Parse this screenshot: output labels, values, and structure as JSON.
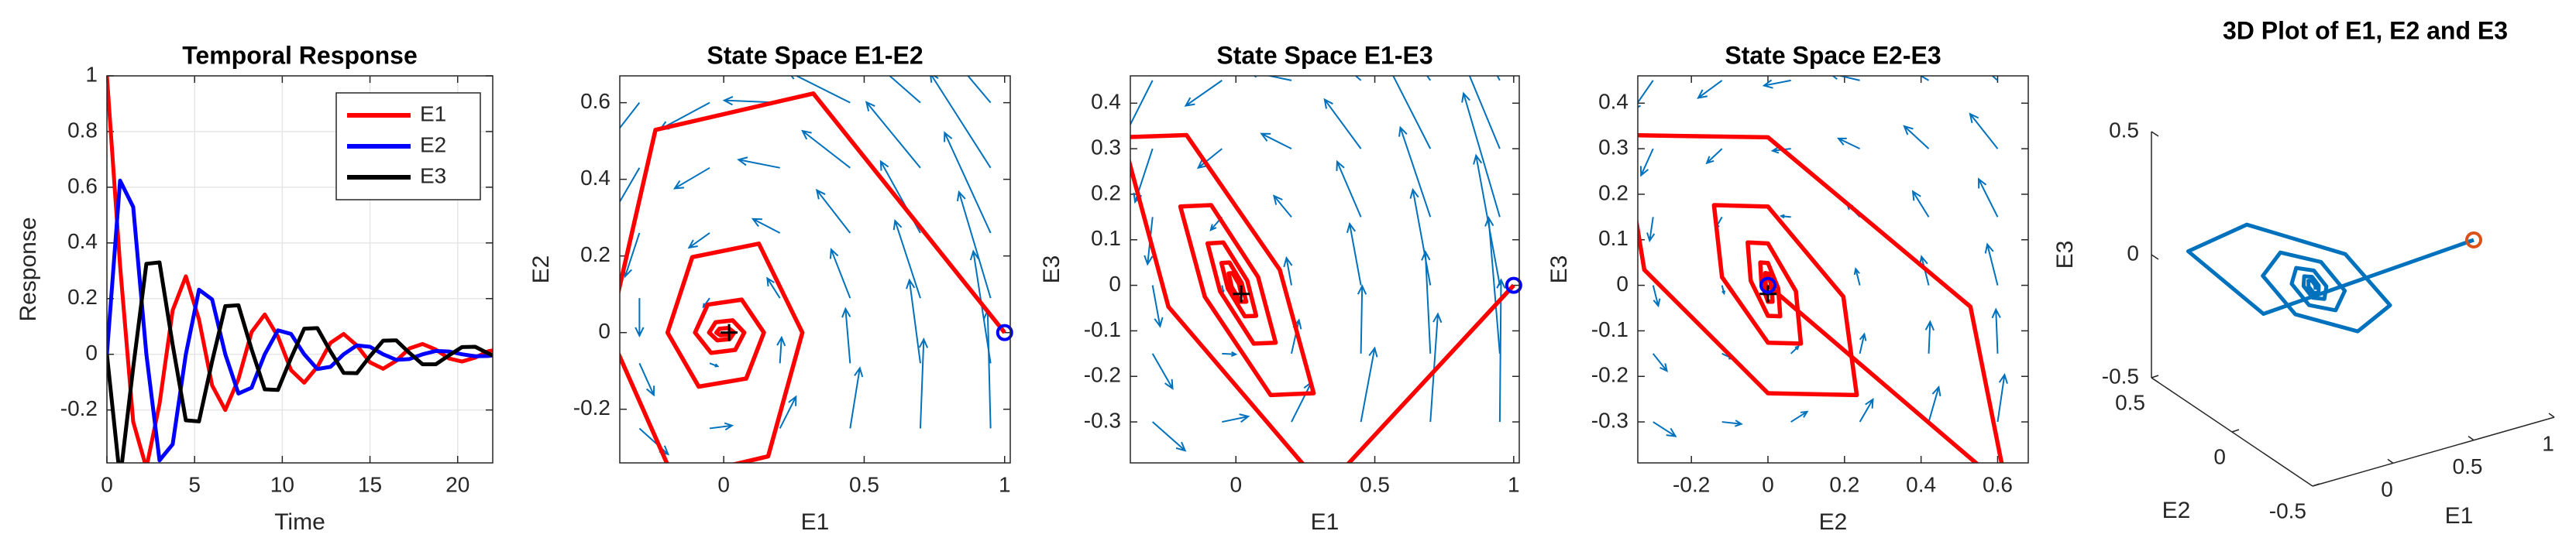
{
  "chart_data": [
    {
      "type": "line",
      "title": "Temporal Response",
      "xlabel": "Time",
      "ylabel": "Response",
      "x": [
        0,
        0.75,
        1.5,
        2.25,
        3,
        3.75,
        4.5,
        5.25,
        6,
        6.75,
        7.5,
        8.25,
        9,
        9.75,
        10.5,
        11.25,
        12,
        12.75,
        13.5,
        14.25,
        15,
        15.75,
        16.5,
        17.25,
        18,
        18.75,
        19.5,
        20.25,
        21,
        21.75,
        22.5
      ],
      "xlim": [
        0,
        22
      ],
      "ylim": [
        -0.39,
        1
      ],
      "xticks": [
        0,
        5,
        10,
        15,
        20
      ],
      "yticks": [
        -0.2,
        0,
        0.2,
        0.4,
        0.6,
        0.8,
        1
      ],
      "grid": true,
      "legend": "northeast",
      "series": [
        {
          "name": "E1",
          "color": "#ff0000",
          "values": [
            1,
            0.319,
            -0.243,
            -0.408,
            -0.178,
            0.158,
            0.28,
            0.125,
            -0.112,
            -0.2,
            -0.089,
            0.08,
            0.143,
            0.064,
            -0.057,
            -0.102,
            -0.045,
            0.041,
            0.073,
            0.032,
            -0.029,
            -0.052,
            -0.023,
            0.021,
            0.037,
            0.017,
            -0.015,
            -0.026,
            -0.012,
            0.011,
            0.019
          ]
        },
        {
          "name": "E2",
          "color": "#0000ff",
          "values": [
            0,
            0.624,
            0.529,
            0,
            -0.381,
            -0.323,
            0,
            0.232,
            0.197,
            0,
            -0.141,
            -0.12,
            0,
            0.086,
            0.073,
            0,
            -0.053,
            -0.045,
            0,
            0.032,
            0.027,
            0,
            -0.02,
            -0.017,
            0,
            0.012,
            0.01,
            0,
            -0.007,
            -0.006,
            0
          ]
        },
        {
          "name": "E3",
          "color": "#000000",
          "values": [
            0,
            -0.448,
            -0.047,
            0.325,
            0.33,
            0.034,
            -0.237,
            -0.241,
            -0.025,
            0.173,
            0.176,
            0.018,
            -0.126,
            -0.128,
            -0.013,
            0.092,
            0.094,
            0.01,
            -0.067,
            -0.068,
            -0.007,
            0.049,
            0.05,
            0.005,
            -0.036,
            -0.036,
            -0.004,
            0.026,
            0.027,
            0.003,
            -0.019
          ]
        }
      ]
    },
    {
      "type": "quiver",
      "title": "State Space E1-E2",
      "xlabel": "E1",
      "ylabel": "E2",
      "xlim": [
        -0.37,
        1.02
      ],
      "ylim": [
        -0.34,
        0.67
      ],
      "xticks": [
        0,
        0.5,
        1
      ],
      "yticks": [
        -0.2,
        0,
        0.2,
        0.4,
        0.6
      ],
      "quiver": {
        "color": "#0072bd",
        "x": [
          -0.3,
          -0.05,
          0.2,
          0.45,
          0.7,
          0.95
        ],
        "y": [
          -0.25,
          -0.08,
          0.09,
          0.26,
          0.43,
          0.6
        ],
        "u": [
          [
            0.34,
            0.265,
            0.19,
            0.115,
            0.04,
            -0.035
          ],
          [
            0.17,
            0.095,
            0.02,
            -0.055,
            -0.13,
            -0.205
          ],
          [
            0,
            -0.075,
            -0.15,
            -0.225,
            -0.3,
            -0.375
          ],
          [
            -0.17,
            -0.245,
            -0.32,
            -0.395,
            -0.47,
            -0.545
          ],
          [
            -0.34,
            -0.415,
            -0.49,
            -0.565,
            -0.64,
            -0.715
          ],
          [
            -0.51,
            -0.585,
            -0.66,
            -0.735,
            -0.81,
            -0.885
          ]
        ],
        "v": [
          [
            -0.225,
            0.025,
            0.275,
            0.525,
            0.775,
            1.025
          ],
          [
            -0.276,
            -0.026,
            0.224,
            0.474,
            0.724,
            0.974
          ],
          [
            -0.327,
            -0.077,
            0.173,
            0.423,
            0.673,
            0.923
          ],
          [
            -0.378,
            -0.128,
            0.122,
            0.372,
            0.622,
            0.872
          ],
          [
            -0.429,
            -0.179,
            0.071,
            0.321,
            0.571,
            0.821
          ],
          [
            -0.48,
            -0.23,
            0.02,
            0.27,
            0.52,
            0.77
          ]
        ]
      },
      "trajectory": {
        "color": "#ff0000",
        "x": [
          1,
          0.319,
          -0.243,
          -0.408,
          -0.178,
          0.158,
          0.28,
          0.125,
          -0.112,
          -0.2,
          -0.089,
          0.08,
          0.143,
          0.064,
          -0.057,
          -0.102,
          -0.045,
          0.041,
          0.073,
          0.032,
          -0.029,
          -0.052,
          -0.023,
          0.021,
          0.037,
          0.017,
          -0.015,
          -0.026,
          -0.012,
          0.011,
          0.019
        ],
        "y": [
          0,
          0.624,
          0.529,
          0,
          -0.381,
          -0.323,
          0,
          0.232,
          0.197,
          0,
          -0.141,
          -0.12,
          0,
          0.086,
          0.073,
          0,
          -0.053,
          -0.045,
          0,
          0.032,
          0.027,
          0,
          -0.02,
          -0.017,
          0,
          0.012,
          0.01,
          0,
          -0.007,
          -0.006,
          0
        ]
      },
      "start_color": "#0000ff",
      "end_color": "#000000"
    },
    {
      "type": "quiver",
      "title": "State Space E1-E3",
      "xlabel": "E1",
      "ylabel": "E3",
      "xlim": [
        -0.38,
        1.02
      ],
      "ylim": [
        -0.39,
        0.46
      ],
      "xticks": [
        0,
        0.5,
        1
      ],
      "yticks": [
        -0.3,
        -0.2,
        -0.1,
        0,
        0.1,
        0.2,
        0.3,
        0.4
      ],
      "quiver": {
        "color": "#0072bd",
        "x": [
          -0.3,
          -0.05,
          0.2,
          0.45,
          0.7,
          0.95
        ],
        "y": [
          -0.3,
          -0.15,
          0,
          0.15,
          0.3,
          0.45
        ],
        "u": [
          [
            0.39,
            0.315,
            0.24,
            0.165,
            0.09,
            0.015
          ],
          [
            0.24,
            0.165,
            0.09,
            0.015,
            -0.06,
            -0.135
          ],
          [
            0.09,
            0.015,
            -0.06,
            -0.135,
            -0.21,
            -0.285
          ],
          [
            -0.06,
            -0.135,
            -0.21,
            -0.285,
            -0.36,
            -0.435
          ],
          [
            -0.21,
            -0.285,
            -0.36,
            -0.435,
            -0.51,
            -0.585
          ],
          [
            -0.36,
            -0.435,
            -0.51,
            -0.585,
            -0.66,
            -0.735
          ]
        ],
        "v": [
          [
            -0.21,
            0.04,
            0.29,
            0.54,
            0.79,
            1.04
          ],
          [
            -0.255,
            -0.005,
            0.245,
            0.495,
            0.745,
            0.995
          ],
          [
            -0.3,
            -0.05,
            0.2,
            0.45,
            0.7,
            0.95
          ],
          [
            -0.345,
            -0.095,
            0.155,
            0.405,
            0.655,
            0.905
          ],
          [
            -0.39,
            -0.14,
            0.11,
            0.36,
            0.61,
            0.86
          ],
          [
            -0.435,
            -0.185,
            0.065,
            0.315,
            0.565,
            0.815
          ]
        ]
      },
      "trajectory": {
        "color": "#ff0000",
        "x": [
          1,
          0.319,
          -0.243,
          -0.408,
          -0.178,
          0.158,
          0.28,
          0.125,
          -0.112,
          -0.2,
          -0.089,
          0.08,
          0.143,
          0.064,
          -0.057,
          -0.102,
          -0.045,
          0.041,
          0.073,
          0.032,
          -0.029,
          -0.052,
          -0.023,
          0.021,
          0.037,
          0.017,
          -0.015,
          -0.026,
          -0.012,
          0.011,
          0.019
        ],
        "y": [
          0,
          -0.448,
          -0.047,
          0.325,
          0.33,
          0.034,
          -0.237,
          -0.241,
          -0.025,
          0.173,
          0.176,
          0.018,
          -0.126,
          -0.128,
          -0.013,
          0.092,
          0.094,
          0.01,
          -0.067,
          -0.068,
          -0.007,
          0.049,
          0.05,
          0.005,
          -0.036,
          -0.036,
          -0.004,
          0.026,
          0.027,
          0.003,
          -0.019
        ]
      },
      "start_color": "#0000ff",
      "end_color": "#000000"
    },
    {
      "type": "quiver",
      "title": "State Space E2-E3",
      "xlabel": "E2",
      "ylabel": "E3",
      "xlim": [
        -0.34,
        0.68
      ],
      "ylim": [
        -0.39,
        0.46
      ],
      "xticks": [
        -0.2,
        0,
        0.2,
        0.4,
        0.6
      ],
      "yticks": [
        -0.3,
        -0.2,
        -0.1,
        0,
        0.1,
        0.2,
        0.3,
        0.4
      ],
      "quiver": {
        "color": "#0072bd",
        "x": [
          -0.3,
          -0.12,
          0.06,
          0.24,
          0.42,
          0.6
        ],
        "y": [
          -0.3,
          -0.15,
          0,
          0.15,
          0.3,
          0.45
        ],
        "u": [
          [
            0.195,
            0.168,
            0.141,
            0.114,
            0.087,
            0.06
          ],
          [
            0.12,
            0.093,
            0.066,
            0.039,
            0.012,
            -0.015
          ],
          [
            0.045,
            0.018,
            -0.009,
            -0.036,
            -0.063,
            -0.09
          ],
          [
            -0.03,
            -0.057,
            -0.084,
            -0.111,
            -0.138,
            -0.165
          ],
          [
            -0.105,
            -0.132,
            -0.159,
            -0.186,
            -0.213,
            -0.24
          ],
          [
            -0.18,
            -0.207,
            -0.234,
            -0.261,
            -0.288,
            -0.315
          ]
        ],
        "v": [
          [
            -0.105,
            -0.015,
            0.075,
            0.165,
            0.255,
            0.345
          ],
          [
            -0.127,
            -0.037,
            0.053,
            0.143,
            0.233,
            0.323
          ],
          [
            -0.15,
            -0.06,
            0.03,
            0.12,
            0.21,
            0.3
          ],
          [
            -0.173,
            -0.083,
            0.007,
            0.097,
            0.187,
            0.277
          ],
          [
            -0.195,
            -0.105,
            -0.015,
            0.075,
            0.165,
            0.255
          ],
          [
            -0.218,
            -0.128,
            -0.038,
            0.052,
            0.142,
            0.232
          ]
        ]
      },
      "trajectory": {
        "color": "#ff0000",
        "x": [
          0,
          0.624,
          0.529,
          0,
          -0.381,
          -0.323,
          0,
          0.232,
          0.197,
          0,
          -0.141,
          -0.12,
          0,
          0.086,
          0.073,
          0,
          -0.053,
          -0.045,
          0,
          0.032,
          0.027,
          0,
          -0.02,
          -0.017,
          0,
          0.012,
          0.01,
          0,
          -0.007,
          -0.006,
          0
        ],
        "y": [
          0,
          -0.448,
          -0.047,
          0.325,
          0.33,
          0.034,
          -0.237,
          -0.241,
          -0.025,
          0.173,
          0.176,
          0.018,
          -0.126,
          -0.128,
          -0.013,
          0.092,
          0.094,
          0.01,
          -0.067,
          -0.068,
          -0.007,
          0.049,
          0.05,
          0.005,
          -0.036,
          -0.036,
          -0.004,
          0.026,
          0.027,
          0.003,
          -0.019
        ]
      },
      "start_color": "#0000ff",
      "end_color": "#000000"
    },
    {
      "type": "line3d",
      "title": "3D Plot of E1, E2 and E3",
      "xlabel": "E1",
      "ylabel": "E2",
      "zlabel": "E3",
      "xlim": [
        -0.5,
        1
      ],
      "ylim": [
        -0.5,
        0.5
      ],
      "zlim": [
        -0.5,
        0.5
      ],
      "xticks": [
        0,
        0.5,
        1
      ],
      "yticks": [
        -0.5,
        0,
        0.5
      ],
      "zticks": [
        -0.5,
        0,
        0.5
      ],
      "color": "#0072bd",
      "start_color": "#d95319",
      "x": [
        1,
        0.319,
        -0.243,
        -0.408,
        -0.178,
        0.158,
        0.28,
        0.125,
        -0.112,
        -0.2,
        -0.089,
        0.08,
        0.143,
        0.064,
        -0.057,
        -0.102,
        -0.045,
        0.041,
        0.073,
        0.032,
        -0.029,
        -0.052,
        -0.023,
        0.021,
        0.037,
        0.017,
        -0.015,
        -0.026,
        -0.012,
        0.011,
        0.019
      ],
      "y": [
        0,
        0.624,
        0.529,
        0,
        -0.381,
        -0.323,
        0,
        0.232,
        0.197,
        0,
        -0.141,
        -0.12,
        0,
        0.086,
        0.073,
        0,
        -0.053,
        -0.045,
        0,
        0.032,
        0.027,
        0,
        -0.02,
        -0.017,
        0,
        0.012,
        0.01,
        0,
        -0.007,
        -0.006,
        0
      ],
      "z": [
        0,
        -0.448,
        -0.047,
        0.325,
        0.33,
        0.034,
        -0.237,
        -0.241,
        -0.025,
        0.173,
        0.176,
        0.018,
        -0.126,
        -0.128,
        -0.013,
        0.092,
        0.094,
        0.01,
        -0.067,
        -0.068,
        -0.007,
        0.049,
        0.05,
        0.005,
        -0.036,
        -0.036,
        -0.004,
        0.026,
        0.027,
        0.003,
        -0.019
      ]
    }
  ]
}
